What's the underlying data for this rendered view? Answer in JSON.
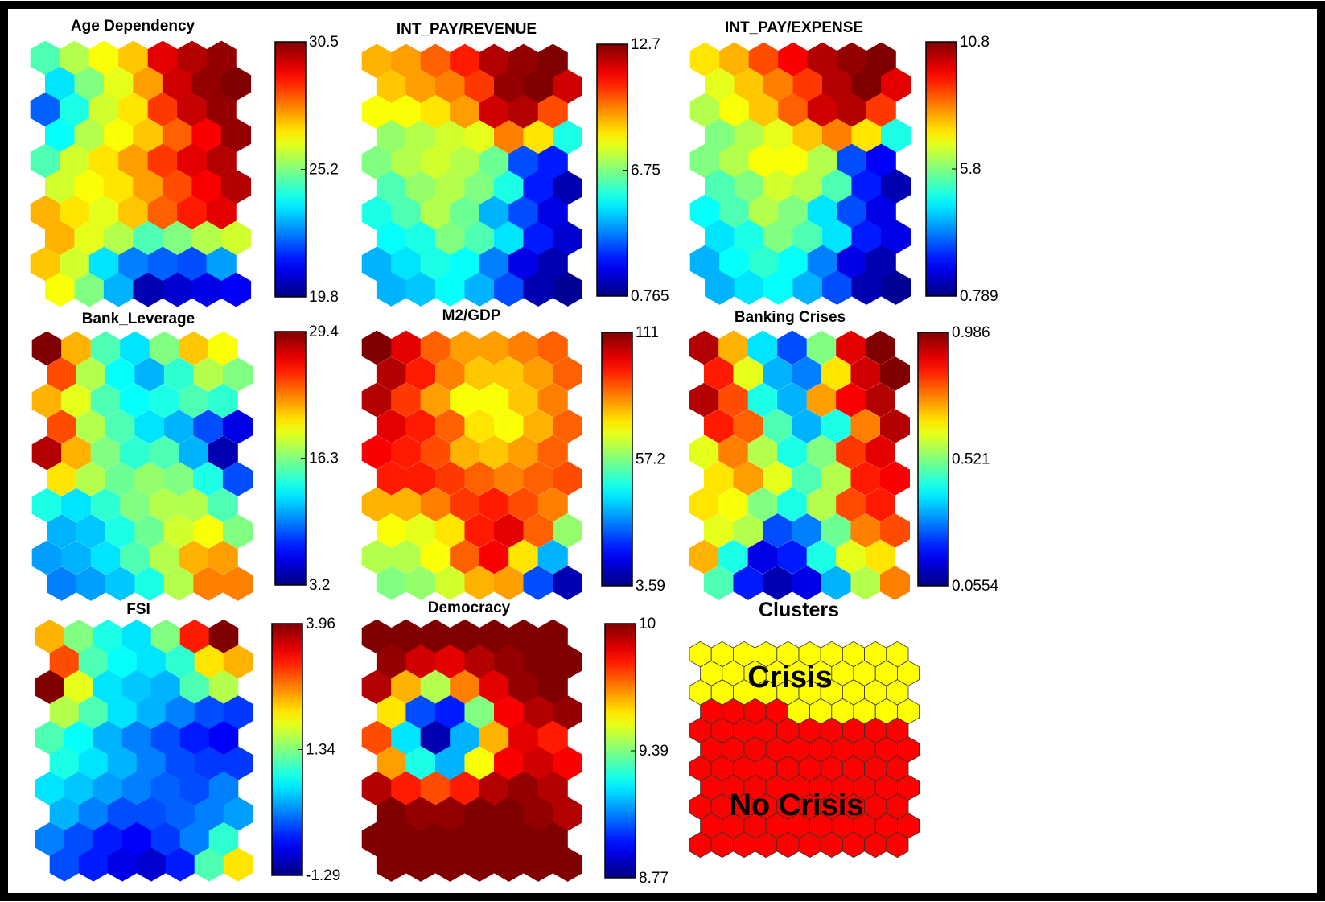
{
  "chart_data": {
    "type": "heatmap",
    "description_kind": "som-component-planes",
    "colormap": "jet",
    "grid": false,
    "panels": [
      {
        "title": "Age Dependency",
        "colorbar_ticks": [
          "30.5",
          "25.2",
          "19.8"
        ],
        "vmin": 19.8,
        "vmax": 30.5,
        "levels": [
          [
            0.45,
            0.55,
            0.62,
            0.68,
            0.9,
            0.95,
            0.98
          ],
          [
            0.35,
            0.5,
            0.6,
            0.72,
            0.92,
            0.98,
            1.0
          ],
          [
            0.22,
            0.4,
            0.58,
            0.65,
            0.82,
            0.93,
            0.98
          ],
          [
            0.38,
            0.55,
            0.62,
            0.68,
            0.78,
            0.88,
            0.98
          ],
          [
            0.45,
            0.58,
            0.65,
            0.72,
            0.82,
            0.9,
            0.95
          ],
          [
            0.58,
            0.62,
            0.65,
            0.72,
            0.8,
            0.88,
            0.95
          ],
          [
            0.7,
            0.65,
            0.6,
            0.68,
            0.78,
            0.85,
            0.9
          ],
          [
            0.7,
            0.6,
            0.55,
            0.45,
            0.5,
            0.55,
            0.58
          ],
          [
            0.68,
            0.58,
            0.35,
            0.25,
            0.22,
            0.2,
            0.28
          ],
          [
            0.62,
            0.5,
            0.3,
            0.05,
            0.08,
            0.1,
            0.12
          ]
        ]
      },
      {
        "title": "INT_PAY/REVENUE",
        "colorbar_ticks": [
          "12.7",
          "6.75",
          "0.765"
        ],
        "vmin": 0.765,
        "vmax": 12.7,
        "levels": [
          [
            0.7,
            0.72,
            0.78,
            0.85,
            0.95,
            0.98,
            1.0
          ],
          [
            0.68,
            0.72,
            0.75,
            0.82,
            0.98,
            1.0,
            0.92
          ],
          [
            0.62,
            0.62,
            0.65,
            0.72,
            0.92,
            0.95,
            0.8
          ],
          [
            0.52,
            0.55,
            0.58,
            0.6,
            0.75,
            0.65,
            0.4
          ],
          [
            0.5,
            0.55,
            0.58,
            0.55,
            0.48,
            0.2,
            0.15
          ],
          [
            0.45,
            0.52,
            0.55,
            0.5,
            0.4,
            0.15,
            0.05
          ],
          [
            0.4,
            0.45,
            0.55,
            0.48,
            0.3,
            0.2,
            0.1
          ],
          [
            0.38,
            0.4,
            0.5,
            0.45,
            0.35,
            0.15,
            0.08
          ],
          [
            0.3,
            0.35,
            0.4,
            0.38,
            0.25,
            0.1,
            0.05
          ],
          [
            0.3,
            0.32,
            0.38,
            0.3,
            0.2,
            0.05,
            0.02
          ]
        ]
      },
      {
        "title": "INT_PAY/EXPENSE",
        "colorbar_ticks": [
          "10.8",
          "5.8",
          "0.789"
        ],
        "vmin": 0.789,
        "vmax": 10.8,
        "levels": [
          [
            0.65,
            0.7,
            0.8,
            0.88,
            0.95,
            0.98,
            1.0
          ],
          [
            0.6,
            0.68,
            0.75,
            0.82,
            0.95,
            1.0,
            0.9
          ],
          [
            0.55,
            0.62,
            0.68,
            0.78,
            0.92,
            0.95,
            0.82
          ],
          [
            0.5,
            0.55,
            0.6,
            0.68,
            0.75,
            0.65,
            0.4
          ],
          [
            0.5,
            0.55,
            0.62,
            0.62,
            0.55,
            0.2,
            0.12
          ],
          [
            0.45,
            0.5,
            0.58,
            0.55,
            0.45,
            0.15,
            0.05
          ],
          [
            0.38,
            0.45,
            0.55,
            0.5,
            0.35,
            0.2,
            0.1
          ],
          [
            0.35,
            0.4,
            0.5,
            0.45,
            0.35,
            0.15,
            0.1
          ],
          [
            0.3,
            0.38,
            0.42,
            0.38,
            0.25,
            0.1,
            0.05
          ],
          [
            0.3,
            0.35,
            0.38,
            0.3,
            0.2,
            0.05,
            0.02
          ]
        ]
      },
      {
        "title": "Bank_Leverage",
        "colorbar_ticks": [
          "29.4",
          "16.3",
          "3.2"
        ],
        "vmin": 3.2,
        "vmax": 29.4,
        "levels": [
          [
            1.0,
            0.7,
            0.45,
            0.35,
            0.5,
            0.68,
            0.62
          ],
          [
            0.8,
            0.55,
            0.38,
            0.3,
            0.42,
            0.55,
            0.5
          ],
          [
            0.7,
            0.6,
            0.45,
            0.38,
            0.4,
            0.45,
            0.42
          ],
          [
            0.8,
            0.55,
            0.45,
            0.35,
            0.3,
            0.2,
            0.1
          ],
          [
            0.95,
            0.7,
            0.5,
            0.42,
            0.45,
            0.3,
            0.05
          ],
          [
            0.65,
            0.55,
            0.48,
            0.52,
            0.5,
            0.4,
            0.2
          ],
          [
            0.4,
            0.35,
            0.42,
            0.5,
            0.55,
            0.55,
            0.45
          ],
          [
            0.3,
            0.32,
            0.4,
            0.48,
            0.58,
            0.62,
            0.5
          ],
          [
            0.28,
            0.3,
            0.35,
            0.45,
            0.55,
            0.7,
            0.72
          ],
          [
            0.25,
            0.28,
            0.32,
            0.4,
            0.55,
            0.75,
            0.75
          ]
        ]
      },
      {
        "title": "M2/GDP",
        "colorbar_ticks": [
          "111",
          "57.2",
          "3.59"
        ],
        "vmin": 3.59,
        "vmax": 111,
        "levels": [
          [
            1.0,
            0.9,
            0.78,
            0.72,
            0.72,
            0.75,
            0.78
          ],
          [
            0.95,
            0.85,
            0.75,
            0.68,
            0.68,
            0.72,
            0.78
          ],
          [
            0.95,
            0.82,
            0.72,
            0.62,
            0.62,
            0.68,
            0.75
          ],
          [
            0.9,
            0.85,
            0.78,
            0.65,
            0.62,
            0.7,
            0.78
          ],
          [
            0.88,
            0.85,
            0.8,
            0.7,
            0.68,
            0.72,
            0.78
          ],
          [
            0.85,
            0.85,
            0.82,
            0.78,
            0.75,
            0.78,
            0.8
          ],
          [
            0.7,
            0.7,
            0.75,
            0.82,
            0.85,
            0.8,
            0.75
          ],
          [
            0.62,
            0.6,
            0.65,
            0.85,
            0.9,
            0.78,
            0.52
          ],
          [
            0.55,
            0.55,
            0.62,
            0.78,
            0.88,
            0.65,
            0.3
          ],
          [
            0.5,
            0.52,
            0.58,
            0.7,
            0.72,
            0.2,
            0.05
          ]
        ]
      },
      {
        "title": "Banking Crises",
        "colorbar_ticks": [
          "0.986",
          "0.521",
          "0.0554"
        ],
        "vmin": 0.0554,
        "vmax": 0.986,
        "levels": [
          [
            0.95,
            0.7,
            0.35,
            0.2,
            0.5,
            0.9,
            1.0
          ],
          [
            0.85,
            0.6,
            0.3,
            0.25,
            0.65,
            0.92,
            1.0
          ],
          [
            0.95,
            0.8,
            0.4,
            0.3,
            0.72,
            0.88,
            0.95
          ],
          [
            0.85,
            0.78,
            0.45,
            0.3,
            0.4,
            0.75,
            0.95
          ],
          [
            0.6,
            0.75,
            0.55,
            0.4,
            0.5,
            0.82,
            0.9
          ],
          [
            0.65,
            0.72,
            0.6,
            0.45,
            0.55,
            0.85,
            0.88
          ],
          [
            0.65,
            0.62,
            0.5,
            0.4,
            0.55,
            0.8,
            0.85
          ],
          [
            0.6,
            0.55,
            0.2,
            0.25,
            0.48,
            0.75,
            0.8
          ],
          [
            0.7,
            0.4,
            0.1,
            0.15,
            0.4,
            0.6,
            0.65
          ],
          [
            0.45,
            0.15,
            0.05,
            0.1,
            0.3,
            0.55,
            0.75
          ]
        ]
      },
      {
        "title": "FSI",
        "colorbar_ticks": [
          "3.96",
          "1.34",
          "-1.29"
        ],
        "vmin": -1.29,
        "vmax": 3.96,
        "levels": [
          [
            0.7,
            0.5,
            0.4,
            0.35,
            0.5,
            0.85,
            1.0
          ],
          [
            0.8,
            0.45,
            0.38,
            0.35,
            0.42,
            0.65,
            0.7
          ],
          [
            1.0,
            0.6,
            0.35,
            0.32,
            0.3,
            0.45,
            0.55
          ],
          [
            0.55,
            0.45,
            0.35,
            0.3,
            0.25,
            0.2,
            0.18
          ],
          [
            0.45,
            0.38,
            0.3,
            0.25,
            0.2,
            0.15,
            0.12
          ],
          [
            0.4,
            0.35,
            0.3,
            0.25,
            0.2,
            0.18,
            0.18
          ],
          [
            0.35,
            0.32,
            0.28,
            0.25,
            0.22,
            0.2,
            0.25
          ],
          [
            0.3,
            0.25,
            0.2,
            0.2,
            0.22,
            0.25,
            0.28
          ],
          [
            0.25,
            0.2,
            0.15,
            0.12,
            0.18,
            0.25,
            0.42
          ],
          [
            0.2,
            0.15,
            0.1,
            0.08,
            0.15,
            0.45,
            0.65
          ]
        ]
      },
      {
        "title": "Democracy",
        "colorbar_ticks": [
          "10",
          "9.39",
          "8.77"
        ],
        "vmin": 8.77,
        "vmax": 10,
        "levels": [
          [
            1.0,
            1.0,
            1.0,
            1.0,
            1.0,
            1.0,
            1.0
          ],
          [
            0.98,
            0.92,
            0.9,
            0.95,
            0.98,
            1.0,
            1.0
          ],
          [
            0.95,
            0.7,
            0.55,
            0.75,
            0.9,
            0.98,
            1.0
          ],
          [
            0.65,
            0.2,
            0.15,
            0.5,
            0.88,
            0.95,
            0.98
          ],
          [
            0.8,
            0.35,
            0.05,
            0.3,
            0.7,
            0.9,
            0.85
          ],
          [
            0.72,
            0.4,
            0.3,
            0.62,
            0.88,
            0.92,
            0.88
          ],
          [
            0.95,
            0.85,
            0.8,
            0.85,
            0.95,
            0.98,
            0.95
          ],
          [
            1.0,
            0.98,
            0.98,
            1.0,
            1.0,
            0.98,
            0.95
          ],
          [
            1.0,
            1.0,
            1.0,
            1.0,
            1.0,
            1.0,
            1.0
          ],
          [
            1.0,
            1.0,
            1.0,
            1.0,
            1.0,
            1.0,
            1.0
          ]
        ]
      },
      {
        "title": "Clusters",
        "kind": "categorical",
        "colors": {
          "crisis": "#ffff00",
          "no_crisis": "#ff0000"
        },
        "labels": {
          "crisis": "Crisis",
          "no_crisis": "No Crisis"
        },
        "cells": [
          [
            "crisis",
            "crisis",
            "crisis",
            "crisis",
            "crisis",
            "crisis",
            "crisis",
            "crisis",
            "crisis",
            "crisis"
          ],
          [
            "crisis",
            "crisis",
            "crisis",
            "crisis",
            "crisis",
            "crisis",
            "crisis",
            "crisis",
            "crisis",
            "crisis"
          ],
          [
            "crisis",
            "crisis",
            "crisis",
            "crisis",
            "crisis",
            "crisis",
            "crisis",
            "crisis",
            "crisis",
            "crisis"
          ],
          [
            "no_crisis",
            "no_crisis",
            "no_crisis",
            "no_crisis",
            "crisis",
            "crisis",
            "crisis",
            "crisis",
            "crisis",
            "crisis"
          ],
          [
            "no_crisis",
            "no_crisis",
            "no_crisis",
            "no_crisis",
            "no_crisis",
            "no_crisis",
            "no_crisis",
            "no_crisis",
            "no_crisis",
            "no_crisis"
          ],
          [
            "no_crisis",
            "no_crisis",
            "no_crisis",
            "no_crisis",
            "no_crisis",
            "no_crisis",
            "no_crisis",
            "no_crisis",
            "no_crisis",
            "no_crisis"
          ],
          [
            "no_crisis",
            "no_crisis",
            "no_crisis",
            "no_crisis",
            "no_crisis",
            "no_crisis",
            "no_crisis",
            "no_crisis",
            "no_crisis",
            "no_crisis"
          ],
          [
            "no_crisis",
            "no_crisis",
            "no_crisis",
            "no_crisis",
            "no_crisis",
            "no_crisis",
            "no_crisis",
            "no_crisis",
            "no_crisis",
            "no_crisis"
          ],
          [
            "no_crisis",
            "no_crisis",
            "no_crisis",
            "no_crisis",
            "no_crisis",
            "no_crisis",
            "no_crisis",
            "no_crisis",
            "no_crisis",
            "no_crisis"
          ],
          [
            "no_crisis",
            "no_crisis",
            "no_crisis",
            "no_crisis",
            "no_crisis",
            "no_crisis",
            "no_crisis",
            "no_crisis",
            "no_crisis",
            "no_crisis"
          ],
          [
            "no_crisis",
            "no_crisis",
            "no_crisis",
            "no_crisis",
            "no_crisis",
            "no_crisis",
            "no_crisis",
            "no_crisis",
            "no_crisis",
            "no_crisis"
          ]
        ]
      }
    ]
  }
}
